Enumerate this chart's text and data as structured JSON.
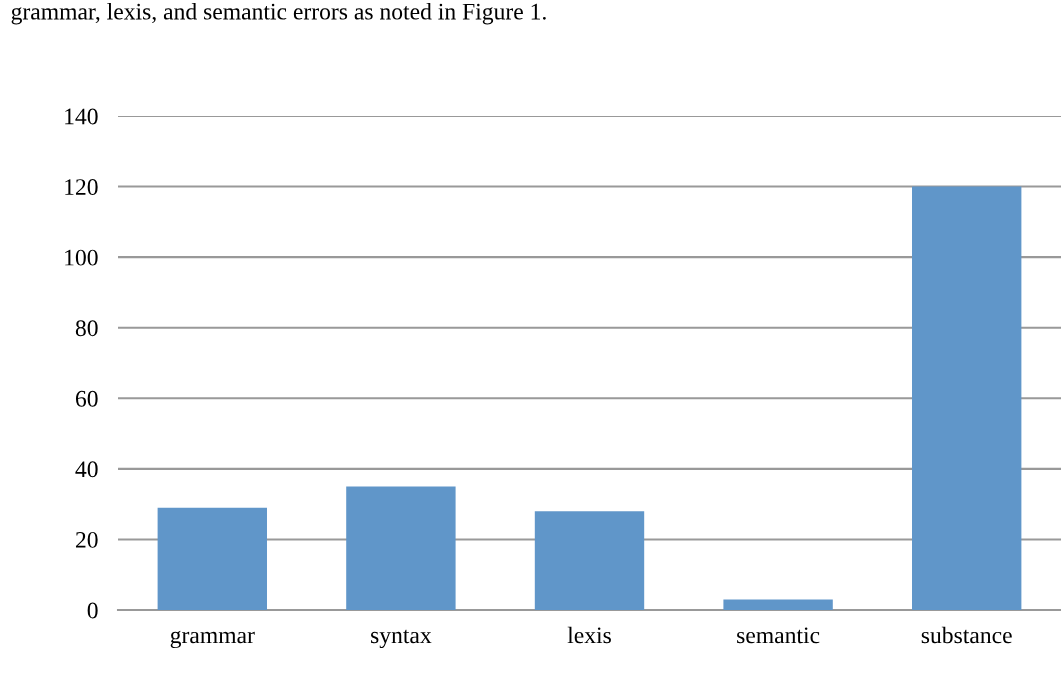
{
  "chart_data": {
    "type": "bar",
    "categories": [
      "grammar",
      "syntax",
      "lexis",
      "semantic",
      "substance"
    ],
    "values": [
      29,
      35,
      28,
      3,
      120
    ],
    "color": "#6096c9",
    "ylim": [
      0,
      140
    ],
    "yticks": [
      0,
      20,
      40,
      60,
      80,
      100,
      120,
      140
    ],
    "grid": "y",
    "annotations": [
      "grammar, lexis, and semantic errors as noted in Figure 1."
    ]
  }
}
